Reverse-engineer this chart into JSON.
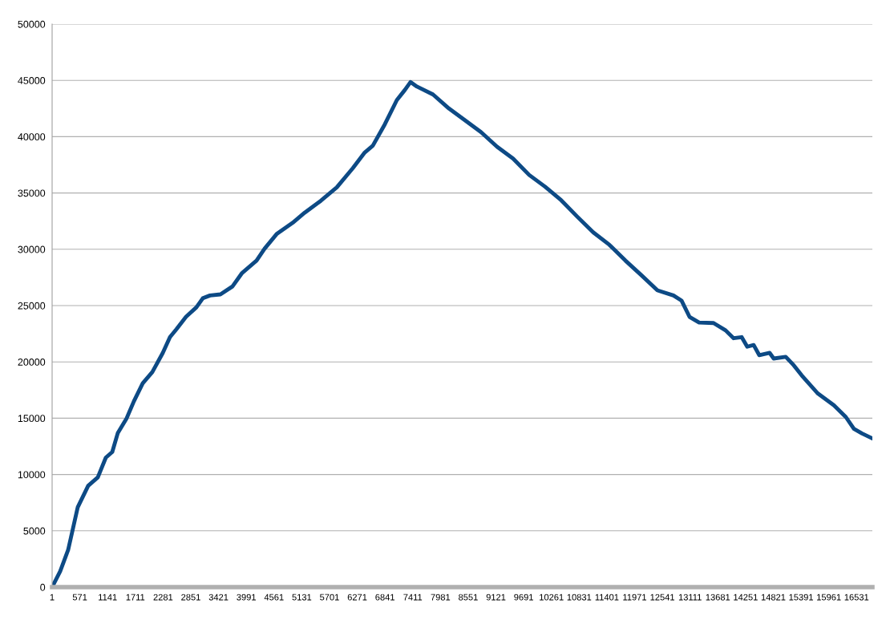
{
  "chart_data": {
    "type": "line",
    "x": [
      1,
      166,
      330,
      528,
      742,
      940,
      1105,
      1237,
      1352,
      1533,
      1681,
      1863,
      2060,
      2275,
      2423,
      2555,
      2752,
      2966,
      3098,
      3246,
      3460,
      3707,
      3905,
      4202,
      4366,
      4614,
      4943,
      5190,
      5520,
      5850,
      6179,
      6426,
      6591,
      6838,
      7085,
      7250,
      7365,
      7497,
      7827,
      8156,
      8486,
      8815,
      9145,
      9474,
      9804,
      10133,
      10463,
      10792,
      11122,
      11451,
      11781,
      12110,
      12440,
      12769,
      12934,
      13099,
      13296,
      13593,
      13840,
      14005,
      14170,
      14285,
      14417,
      14532,
      14746,
      14829,
      15076,
      15241,
      15405,
      15735,
      16065,
      16312,
      16477,
      16642,
      16856
    ],
    "series": [
      {
        "color": "#0d4a85",
        "values": [
          0,
          1400,
          3300,
          7100,
          9000,
          9750,
          11500,
          12000,
          13700,
          15000,
          16500,
          18100,
          19100,
          20800,
          22200,
          22900,
          24000,
          24850,
          25650,
          25900,
          26000,
          26700,
          27900,
          29000,
          30050,
          31350,
          32350,
          33250,
          34300,
          35500,
          37200,
          38600,
          39200,
          41100,
          43250,
          44150,
          44850,
          44450,
          43750,
          42500,
          41450,
          40400,
          39100,
          38050,
          36600,
          35550,
          34350,
          32900,
          31500,
          30400,
          29000,
          27700,
          26350,
          25900,
          25450,
          24000,
          23500,
          23450,
          22800,
          22100,
          22200,
          21350,
          21500,
          20600,
          20800,
          20300,
          20450,
          19700,
          18800,
          17200,
          16150,
          15100,
          14050,
          13650,
          13200
        ]
      }
    ],
    "xlim": [
      1,
      16856
    ],
    "xticks": [
      1,
      571,
      1141,
      1711,
      2281,
      2851,
      3421,
      3991,
      4561,
      5131,
      5701,
      6271,
      6841,
      7411,
      7981,
      8551,
      9121,
      9691,
      10261,
      10831,
      11401,
      11971,
      12541,
      13111,
      13681,
      14251,
      14821,
      15391,
      15961,
      16531
    ],
    "ylim": [
      0,
      50000
    ],
    "yticks": [
      0,
      5000,
      10000,
      15000,
      20000,
      25000,
      30000,
      35000,
      40000,
      45000,
      50000
    ],
    "grid": "y",
    "legend": false,
    "marker": "none",
    "line_style": "solid"
  }
}
